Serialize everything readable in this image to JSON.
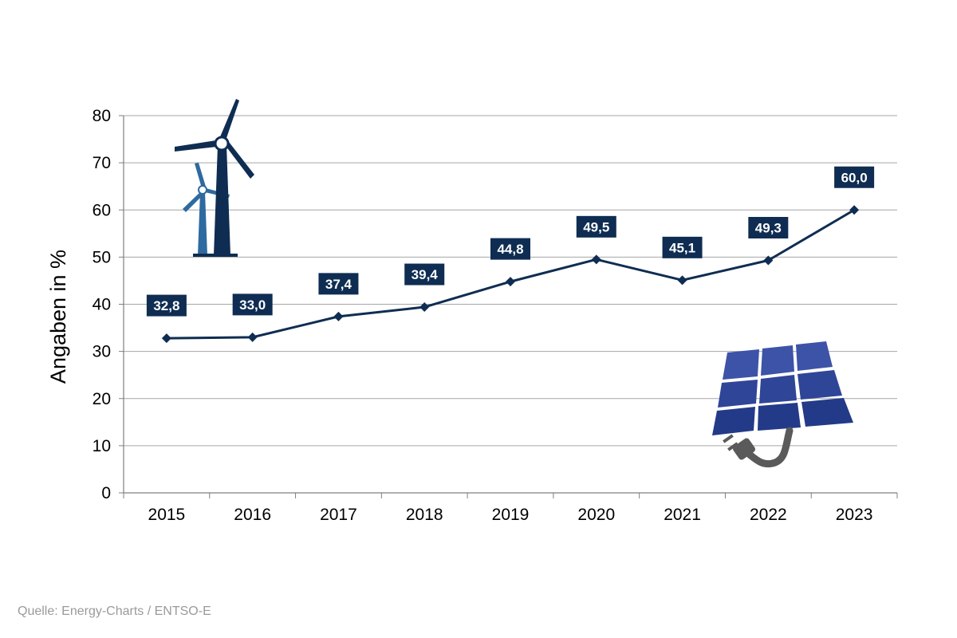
{
  "chart_data": {
    "type": "line",
    "title": "",
    "xlabel": "",
    "ylabel": "Angaben in %",
    "categories": [
      "2015",
      "2016",
      "2017",
      "2018",
      "2019",
      "2020",
      "2021",
      "2022",
      "2023"
    ],
    "values": [
      32.8,
      33.0,
      37.4,
      39.4,
      44.8,
      49.5,
      45.1,
      49.3,
      60.0
    ],
    "data_labels": [
      "32,8",
      "33,0",
      "37,4",
      "39,4",
      "44,8",
      "49,5",
      "45,1",
      "49,3",
      "60,0"
    ],
    "ylim": [
      0,
      80
    ],
    "yticks": [
      "0",
      "10",
      "20",
      "30",
      "40",
      "50",
      "60",
      "70",
      "80"
    ],
    "grid": true,
    "legend": "none",
    "colors": {
      "line": "#0f2d52",
      "label_bg": "#0f2d52",
      "grid": "#a6a6a6",
      "axis": "#7f7f7f"
    }
  },
  "decorations": {
    "top_left": "wind-turbines-icon",
    "bottom_right": "solar-panel-plug-icon"
  },
  "source_text": "Quelle: Energy-Charts / ENTSO-E"
}
